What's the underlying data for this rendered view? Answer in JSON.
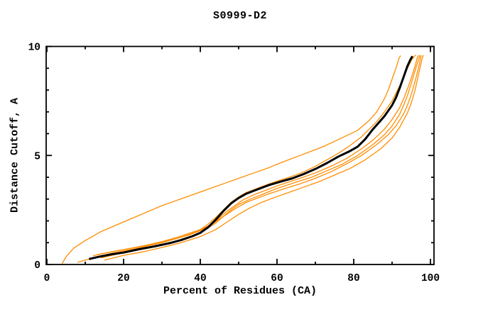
{
  "window": {
    "background": "#ffffff"
  },
  "chart_data": {
    "type": "line",
    "title": "S0999-D2",
    "xlabel": "Percent of Residues (CA)",
    "ylabel": "Distance Cutoff, A",
    "xlim": [
      0,
      100
    ],
    "ylim": [
      0,
      10
    ],
    "x_major_ticks": [
      0,
      20,
      40,
      60,
      80,
      100
    ],
    "x_minor_ticks": [
      10,
      30,
      50,
      70,
      90
    ],
    "y_major_ticks": [
      0,
      5,
      10
    ],
    "y_minor_ticks": [
      1,
      2,
      3,
      4,
      6,
      7,
      8,
      9
    ],
    "grid": false,
    "legend_position": "none",
    "frame_style": "closed box, ticks inward on all four sides",
    "colors": {
      "highlight_curve": "#000000",
      "other_curves": "#ff8c00",
      "frame": "#000000",
      "text": "#000000"
    },
    "series": [
      {
        "name": "model-highlighted",
        "color": "#000000",
        "width": 3,
        "points": [
          [
            11,
            0.25
          ],
          [
            14,
            0.37
          ],
          [
            17,
            0.47
          ],
          [
            20,
            0.55
          ],
          [
            24,
            0.7
          ],
          [
            28,
            0.83
          ],
          [
            32,
            0.98
          ],
          [
            35,
            1.12
          ],
          [
            38,
            1.3
          ],
          [
            40,
            1.45
          ],
          [
            42,
            1.7
          ],
          [
            44,
            2.05
          ],
          [
            46,
            2.45
          ],
          [
            48,
            2.8
          ],
          [
            50,
            3.05
          ],
          [
            52,
            3.25
          ],
          [
            55,
            3.45
          ],
          [
            58,
            3.65
          ],
          [
            61,
            3.8
          ],
          [
            64,
            3.95
          ],
          [
            67,
            4.15
          ],
          [
            70,
            4.38
          ],
          [
            73,
            4.65
          ],
          [
            76,
            4.95
          ],
          [
            79,
            5.2
          ],
          [
            81,
            5.4
          ],
          [
            83,
            5.75
          ],
          [
            85,
            6.2
          ],
          [
            86,
            6.4
          ],
          [
            87,
            6.6
          ],
          [
            88,
            6.8
          ],
          [
            89,
            7.05
          ],
          [
            90,
            7.3
          ],
          [
            91,
            7.65
          ],
          [
            92,
            8.1
          ],
          [
            93,
            8.6
          ],
          [
            94,
            9.1
          ],
          [
            94.8,
            9.4
          ],
          [
            95.3,
            9.55
          ]
        ]
      },
      {
        "name": "model-orange-1-outlier",
        "color": "#ff8c00",
        "width": 1.3,
        "points": [
          [
            4,
            0.05
          ],
          [
            5,
            0.35
          ],
          [
            7,
            0.75
          ],
          [
            10,
            1.1
          ],
          [
            14,
            1.5
          ],
          [
            18,
            1.8
          ],
          [
            22,
            2.1
          ],
          [
            26,
            2.4
          ],
          [
            30,
            2.7
          ],
          [
            34,
            2.95
          ],
          [
            38,
            3.2
          ],
          [
            42,
            3.45
          ],
          [
            46,
            3.7
          ],
          [
            50,
            3.95
          ],
          [
            54,
            4.2
          ],
          [
            58,
            4.45
          ],
          [
            60,
            4.6
          ],
          [
            63,
            4.8
          ],
          [
            66,
            5.0
          ],
          [
            69,
            5.2
          ],
          [
            72,
            5.4
          ],
          [
            75,
            5.65
          ],
          [
            78,
            5.9
          ],
          [
            81,
            6.15
          ],
          [
            84,
            6.6
          ],
          [
            86,
            7.0
          ],
          [
            88,
            7.6
          ],
          [
            89,
            8.0
          ],
          [
            90,
            8.5
          ],
          [
            91,
            9.0
          ],
          [
            91.8,
            9.45
          ],
          [
            92.2,
            9.58
          ]
        ]
      },
      {
        "name": "model-orange-2",
        "color": "#ff8c00",
        "width": 1.3,
        "points": [
          [
            12,
            0.4
          ],
          [
            16,
            0.55
          ],
          [
            20,
            0.68
          ],
          [
            25,
            0.85
          ],
          [
            30,
            1.05
          ],
          [
            34,
            1.25
          ],
          [
            37,
            1.42
          ],
          [
            40,
            1.6
          ],
          [
            42,
            1.85
          ],
          [
            44,
            2.15
          ],
          [
            46,
            2.5
          ],
          [
            48,
            2.85
          ],
          [
            50,
            3.1
          ],
          [
            52,
            3.3
          ],
          [
            55,
            3.5
          ],
          [
            58,
            3.7
          ],
          [
            61,
            3.88
          ],
          [
            64,
            4.05
          ],
          [
            67,
            4.25
          ],
          [
            70,
            4.5
          ],
          [
            73,
            4.8
          ],
          [
            76,
            5.1
          ],
          [
            79,
            5.45
          ],
          [
            82,
            5.85
          ],
          [
            84,
            6.2
          ],
          [
            86,
            6.55
          ],
          [
            88,
            7.0
          ],
          [
            90,
            7.5
          ],
          [
            91,
            7.85
          ],
          [
            92,
            8.2
          ],
          [
            93,
            8.6
          ],
          [
            94,
            9.0
          ],
          [
            95,
            9.35
          ],
          [
            95.8,
            9.55
          ],
          [
            96.2,
            9.6
          ]
        ]
      },
      {
        "name": "model-orange-3",
        "color": "#ff8c00",
        "width": 1.3,
        "points": [
          [
            13,
            0.45
          ],
          [
            18,
            0.62
          ],
          [
            23,
            0.78
          ],
          [
            28,
            0.95
          ],
          [
            33,
            1.15
          ],
          [
            37,
            1.35
          ],
          [
            40,
            1.55
          ],
          [
            43,
            1.85
          ],
          [
            45,
            2.15
          ],
          [
            47,
            2.45
          ],
          [
            49,
            2.7
          ],
          [
            51,
            2.95
          ],
          [
            54,
            3.2
          ],
          [
            57,
            3.4
          ],
          [
            60,
            3.6
          ],
          [
            63,
            3.78
          ],
          [
            66,
            3.95
          ],
          [
            70,
            4.2
          ],
          [
            74,
            4.5
          ],
          [
            78,
            4.85
          ],
          [
            82,
            5.3
          ],
          [
            85,
            5.7
          ],
          [
            88,
            6.2
          ],
          [
            90,
            6.65
          ],
          [
            92,
            7.2
          ],
          [
            93,
            7.6
          ],
          [
            94,
            8.05
          ],
          [
            95,
            8.55
          ],
          [
            96,
            9.1
          ],
          [
            96.6,
            9.5
          ],
          [
            96.9,
            9.6
          ]
        ]
      },
      {
        "name": "model-orange-4",
        "color": "#ff8c00",
        "width": 1.3,
        "points": [
          [
            14,
            0.3
          ],
          [
            19,
            0.5
          ],
          [
            24,
            0.68
          ],
          [
            29,
            0.88
          ],
          [
            34,
            1.1
          ],
          [
            38,
            1.32
          ],
          [
            41,
            1.55
          ],
          [
            44,
            1.9
          ],
          [
            46,
            2.2
          ],
          [
            48,
            2.5
          ],
          [
            50,
            2.75
          ],
          [
            53,
            3.0
          ],
          [
            56,
            3.2
          ],
          [
            59,
            3.42
          ],
          [
            62,
            3.6
          ],
          [
            65,
            3.78
          ],
          [
            69,
            4.0
          ],
          [
            73,
            4.3
          ],
          [
            77,
            4.6
          ],
          [
            81,
            5.0
          ],
          [
            85,
            5.5
          ],
          [
            88,
            5.95
          ],
          [
            90,
            6.35
          ],
          [
            92,
            6.9
          ],
          [
            93,
            7.3
          ],
          [
            94,
            7.75
          ],
          [
            95,
            8.3
          ],
          [
            96,
            8.9
          ],
          [
            97,
            9.45
          ],
          [
            97.3,
            9.6
          ]
        ]
      },
      {
        "name": "model-orange-5",
        "color": "#ff8c00",
        "width": 1.3,
        "points": [
          [
            8,
            0.1
          ],
          [
            12,
            0.3
          ],
          [
            16,
            0.48
          ],
          [
            20,
            0.62
          ],
          [
            25,
            0.8
          ],
          [
            30,
            1.0
          ],
          [
            35,
            1.25
          ],
          [
            39,
            1.5
          ],
          [
            43,
            1.85
          ],
          [
            46,
            2.2
          ],
          [
            49,
            2.55
          ],
          [
            52,
            2.85
          ],
          [
            55,
            3.05
          ],
          [
            58,
            3.25
          ],
          [
            62,
            3.48
          ],
          [
            66,
            3.7
          ],
          [
            70,
            3.95
          ],
          [
            74,
            4.25
          ],
          [
            78,
            4.6
          ],
          [
            82,
            5.0
          ],
          [
            86,
            5.5
          ],
          [
            89,
            5.95
          ],
          [
            91,
            6.35
          ],
          [
            93,
            6.9
          ],
          [
            94,
            7.3
          ],
          [
            95,
            7.8
          ],
          [
            96,
            8.4
          ],
          [
            97,
            9.1
          ],
          [
            97.6,
            9.6
          ]
        ]
      },
      {
        "name": "model-orange-6",
        "color": "#ff8c00",
        "width": 1.3,
        "points": [
          [
            15,
            0.2
          ],
          [
            20,
            0.42
          ],
          [
            25,
            0.58
          ],
          [
            30,
            0.78
          ],
          [
            35,
            1.0
          ],
          [
            40,
            1.28
          ],
          [
            44,
            1.6
          ],
          [
            47,
            1.95
          ],
          [
            50,
            2.3
          ],
          [
            53,
            2.6
          ],
          [
            56,
            2.85
          ],
          [
            59,
            3.05
          ],
          [
            63,
            3.3
          ],
          [
            67,
            3.55
          ],
          [
            71,
            3.8
          ],
          [
            75,
            4.1
          ],
          [
            79,
            4.4
          ],
          [
            83,
            4.8
          ],
          [
            87,
            5.3
          ],
          [
            90,
            5.8
          ],
          [
            92,
            6.3
          ],
          [
            94,
            6.95
          ],
          [
            95,
            7.4
          ],
          [
            96,
            8.0
          ],
          [
            97,
            8.8
          ],
          [
            97.9,
            9.5
          ],
          [
            98.2,
            9.6
          ]
        ]
      }
    ]
  }
}
